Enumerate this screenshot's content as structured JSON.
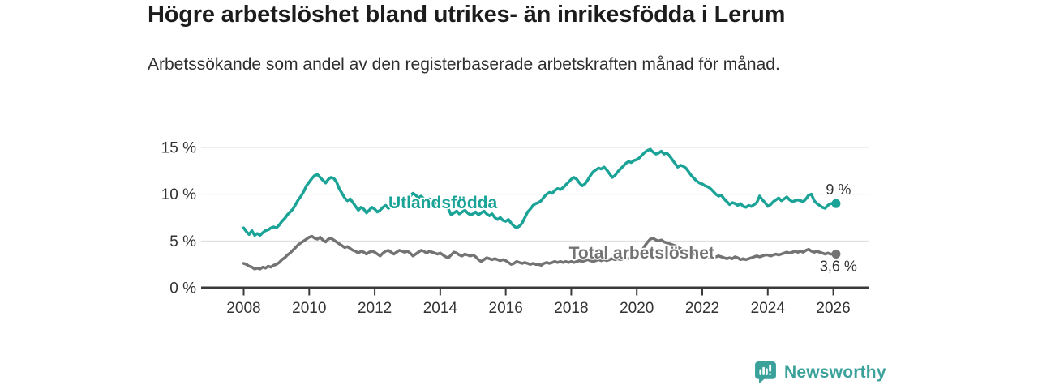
{
  "header": {
    "title": "Högre arbetslöshet bland utrikes- än inrikesfödda i Lerum",
    "subtitle": "Arbetssökande som andel av den registerbaserade arbetskraften månad för månad."
  },
  "footer": {
    "brand": "Newsworthy",
    "brand_color": "#3ba29b",
    "logo_icon": "bar-chart-speech-bubble-icon"
  },
  "chart_data": {
    "type": "line",
    "title": "Högre arbetslöshet bland utrikes- än inrikesfödda i Lerum",
    "subtitle": "Arbetssökande som andel av den registerbaserade arbetskraften månad för månad.",
    "xlabel": "",
    "ylabel": "",
    "grid": "horizontal",
    "legend_position": "inline-labels",
    "x_unit": "year-month",
    "x_start": 2008.0,
    "x_step": 0.08333,
    "x_domain": [
      2006.7,
      2027.1
    ],
    "ylim": [
      0,
      15
    ],
    "x_ticks": [
      2008,
      2010,
      2012,
      2014,
      2016,
      2018,
      2020,
      2022,
      2024,
      2026
    ],
    "y_ticks": [
      {
        "value": 0,
        "label": "0 %"
      },
      {
        "value": 5,
        "label": "5 %"
      },
      {
        "value": 10,
        "label": "10 %"
      },
      {
        "value": 15,
        "label": "15 %"
      }
    ],
    "axis_color": "#3a3a3a",
    "grid_color": "#dcdcdc",
    "tick_label_color": "#333333",
    "series": [
      {
        "name": "Utlandsfödda",
        "color": "#1aa396",
        "label": {
          "text": "Utlandsfödda",
          "x": 2014.08,
          "y": 9.1
        },
        "end_annotation": {
          "text": "9 %",
          "position": "above"
        },
        "values": [
          6.4,
          6.0,
          5.7,
          6.1,
          5.6,
          5.8,
          5.6,
          5.9,
          6.1,
          6.2,
          6.4,
          6.5,
          6.4,
          6.7,
          7.1,
          7.4,
          7.8,
          8.1,
          8.4,
          8.9,
          9.4,
          9.8,
          10.3,
          10.9,
          11.3,
          11.7,
          12.0,
          12.1,
          11.8,
          11.5,
          11.2,
          11.6,
          11.8,
          11.7,
          11.3,
          10.6,
          10.1,
          9.6,
          9.3,
          9.5,
          9.1,
          8.7,
          8.3,
          8.6,
          8.4,
          8.0,
          8.3,
          8.6,
          8.4,
          8.1,
          8.3,
          8.6,
          8.8,
          8.5,
          8.7,
          9.0,
          8.8,
          9.1,
          9.3,
          9.2,
          9.5,
          9.8,
          10.1,
          9.9,
          9.6,
          9.8,
          9.5,
          9.3,
          9.5,
          9.2,
          9.0,
          9.2,
          8.9,
          8.7,
          8.9,
          8.4,
          7.8,
          8.0,
          8.2,
          7.9,
          8.1,
          8.3,
          8.0,
          7.8,
          7.9,
          8.1,
          7.8,
          8.0,
          8.2,
          7.9,
          7.7,
          7.9,
          7.5,
          7.3,
          7.5,
          7.2,
          7.1,
          7.3,
          6.9,
          6.6,
          6.4,
          6.6,
          6.9,
          7.5,
          8.1,
          8.4,
          8.8,
          9.0,
          9.1,
          9.3,
          9.7,
          10.0,
          10.2,
          10.1,
          10.4,
          10.6,
          10.5,
          10.7,
          11.0,
          11.3,
          11.6,
          11.8,
          11.6,
          11.2,
          10.9,
          11.1,
          11.5,
          12.0,
          12.4,
          12.6,
          12.8,
          12.7,
          12.9,
          12.6,
          12.2,
          11.8,
          12.0,
          12.4,
          12.7,
          13.0,
          13.3,
          13.5,
          13.4,
          13.6,
          13.7,
          13.9,
          14.2,
          14.5,
          14.7,
          14.8,
          14.5,
          14.3,
          14.4,
          14.6,
          14.3,
          14.4,
          14.1,
          13.7,
          13.3,
          12.9,
          13.1,
          13.0,
          12.8,
          12.4,
          12.0,
          11.7,
          11.4,
          11.2,
          11.1,
          10.9,
          10.8,
          10.6,
          10.3,
          10.0,
          9.8,
          9.9,
          9.5,
          9.2,
          8.9,
          9.1,
          9.0,
          8.8,
          9.0,
          8.7,
          8.6,
          8.8,
          8.7,
          8.9,
          9.1,
          9.8,
          9.4,
          9.1,
          8.7,
          8.9,
          9.2,
          9.4,
          9.6,
          9.3,
          9.5,
          9.7,
          9.4,
          9.2,
          9.3,
          9.4,
          9.3,
          9.2,
          9.5,
          9.9,
          10.0,
          9.3,
          9.0,
          8.8,
          8.6,
          8.5,
          8.8,
          9.0,
          9.0,
          9.0
        ]
      },
      {
        "name": "Total arbetslöshet",
        "color": "#737373",
        "label": {
          "text": "Total arbetslöshet",
          "x": 2020.15,
          "y": 3.75
        },
        "end_annotation": {
          "text": "3,6 %",
          "position": "below"
        },
        "values": [
          2.6,
          2.5,
          2.3,
          2.2,
          2.0,
          2.1,
          2.0,
          2.2,
          2.1,
          2.3,
          2.2,
          2.4,
          2.5,
          2.7,
          3.0,
          3.2,
          3.5,
          3.7,
          4.0,
          4.3,
          4.6,
          4.8,
          5.0,
          5.2,
          5.4,
          5.5,
          5.3,
          5.2,
          5.4,
          5.1,
          4.9,
          5.2,
          5.3,
          5.1,
          4.9,
          4.7,
          4.5,
          4.3,
          4.4,
          4.2,
          4.0,
          3.9,
          3.7,
          3.9,
          3.8,
          3.6,
          3.8,
          3.9,
          3.8,
          3.6,
          3.4,
          3.7,
          3.9,
          4.0,
          3.8,
          3.6,
          3.8,
          4.0,
          3.9,
          3.8,
          3.9,
          3.7,
          3.4,
          3.6,
          3.8,
          4.0,
          3.9,
          3.7,
          3.9,
          3.8,
          3.7,
          3.6,
          3.7,
          3.5,
          3.3,
          3.2,
          3.5,
          3.8,
          3.7,
          3.5,
          3.4,
          3.6,
          3.5,
          3.4,
          3.5,
          3.3,
          3.0,
          2.8,
          3.0,
          3.2,
          3.1,
          3.0,
          3.1,
          3.0,
          2.9,
          3.0,
          2.9,
          2.7,
          2.5,
          2.6,
          2.8,
          2.7,
          2.6,
          2.7,
          2.6,
          2.5,
          2.6,
          2.5,
          2.5,
          2.4,
          2.6,
          2.7,
          2.6,
          2.7,
          2.8,
          2.7,
          2.8,
          2.7,
          2.8,
          2.7,
          2.8,
          2.7,
          2.8,
          2.9,
          2.8,
          2.9,
          3.0,
          2.9,
          2.8,
          2.9,
          3.0,
          2.9,
          3.0,
          2.9,
          3.0,
          3.1,
          3.0,
          3.1,
          3.0,
          3.1,
          3.2,
          3.1,
          3.2,
          3.3,
          3.4,
          3.6,
          4.0,
          4.5,
          4.9,
          5.2,
          5.3,
          5.1,
          5.0,
          5.1,
          4.9,
          4.8,
          4.7,
          4.6,
          4.5,
          4.3,
          4.2,
          4.0,
          3.9,
          3.8,
          3.7,
          3.6,
          3.5,
          3.4,
          3.4,
          3.3,
          3.2,
          3.3,
          3.2,
          3.3,
          3.4,
          3.3,
          3.2,
          3.1,
          3.2,
          3.1,
          3.3,
          3.2,
          3.0,
          3.1,
          3.0,
          3.1,
          3.2,
          3.3,
          3.4,
          3.3,
          3.4,
          3.5,
          3.5,
          3.4,
          3.5,
          3.6,
          3.5,
          3.6,
          3.7,
          3.8,
          3.7,
          3.8,
          3.9,
          3.8,
          3.9,
          3.8,
          4.0,
          4.1,
          3.9,
          3.8,
          3.9,
          3.8,
          3.7,
          3.6,
          3.7,
          3.6,
          3.6,
          3.6
        ]
      }
    ]
  }
}
